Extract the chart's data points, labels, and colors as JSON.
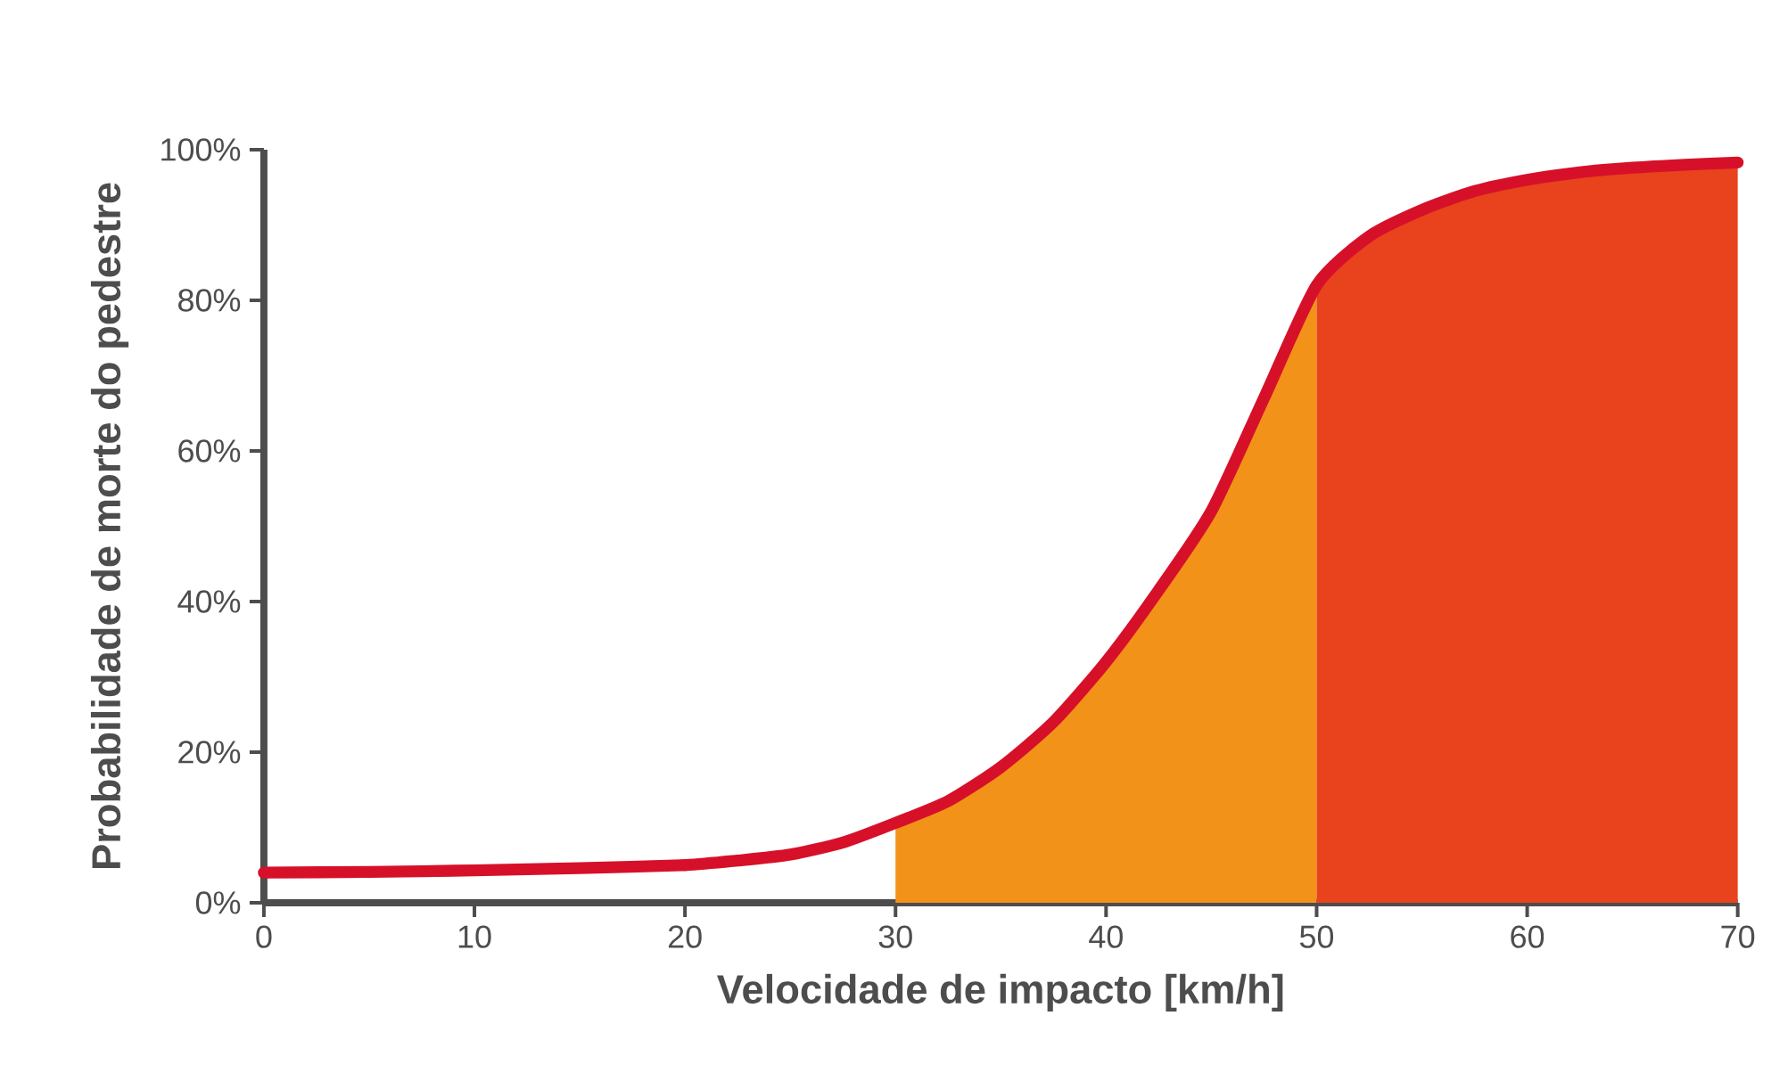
{
  "chart_data": {
    "type": "line",
    "xlabel": "Velocidade de impacto [km/h]",
    "ylabel": "Probabilidade de morte do pedestre",
    "series": [
      {
        "type": "area",
        "color": "#f39219",
        "x": [
          30,
          32.5,
          35,
          37.5,
          40,
          42.5,
          45,
          47.5,
          50
        ],
        "values": [
          10.6,
          13.5,
          18,
          24,
          32,
          41.5,
          52,
          67,
          82
        ]
      },
      {
        "type": "area",
        "color": "#e8431c",
        "x": [
          50,
          52.5,
          55,
          57.5,
          60,
          62.5,
          65,
          67.5,
          70
        ],
        "values": [
          82,
          88.5,
          92,
          94.5,
          96,
          97,
          97.6,
          98,
          98.3
        ]
      },
      {
        "color": "#d7102a",
        "x": [
          0,
          5,
          10,
          15,
          20,
          22.5,
          25,
          27.5,
          30,
          32.5,
          35,
          37.5,
          40,
          42.5,
          45,
          47.5,
          50,
          52.5,
          55,
          57.5,
          60,
          62.5,
          65,
          67.5,
          70
        ],
        "values": [
          4,
          4.1,
          4.3,
          4.6,
          5,
          5.6,
          6.4,
          8,
          10.6,
          13.5,
          18,
          24,
          32,
          41.5,
          52,
          67,
          82,
          88.5,
          92,
          94.5,
          96,
          97,
          97.6,
          98,
          98.3
        ]
      }
    ],
    "xlim": [
      0,
      70
    ],
    "xticks": [
      0,
      10,
      20,
      30,
      40,
      50,
      60,
      70
    ],
    "ylim": [
      0,
      100
    ],
    "yticks": [
      {
        "value": 0,
        "label": "0%"
      },
      {
        "value": 20,
        "label": "20%"
      },
      {
        "value": 40,
        "label": "40%"
      },
      {
        "value": 60,
        "label": "60%"
      },
      {
        "value": 80,
        "label": "80%"
      },
      {
        "value": 100,
        "label": "100%"
      }
    ],
    "grid": false,
    "line_style": "solid",
    "marker": "none"
  }
}
